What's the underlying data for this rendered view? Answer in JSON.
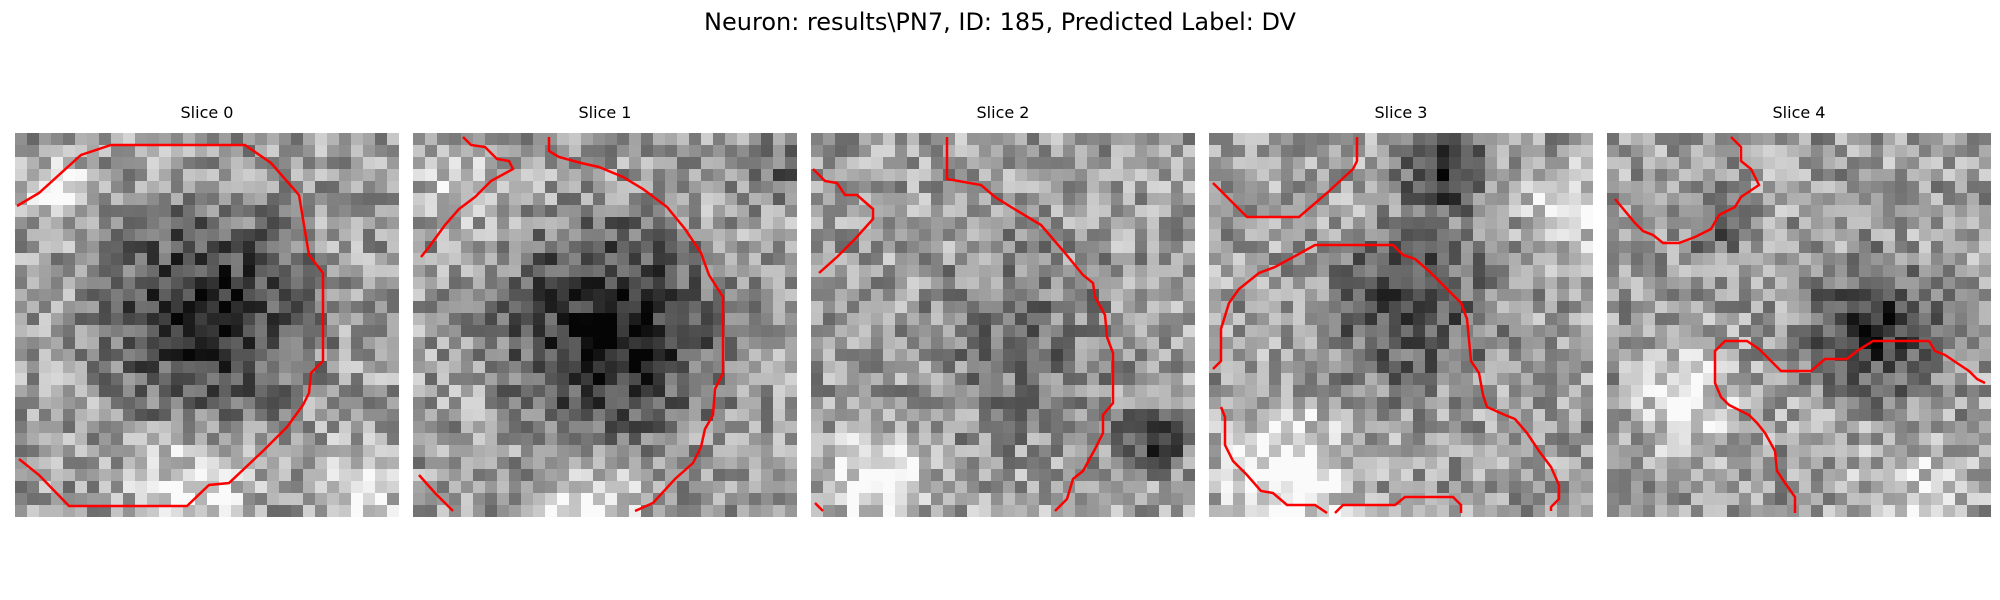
{
  "figure": {
    "title": "Neuron: results\\PN7, ID: 185, Predicted Label: DV"
  },
  "panels": [
    {
      "title": "Slice 0"
    },
    {
      "title": "Slice 1"
    },
    {
      "title": "Slice 2"
    },
    {
      "title": "Slice 3"
    },
    {
      "title": "Slice 4"
    }
  ],
  "colors": {
    "contour": "#ff0000",
    "background": "#ffffff"
  }
}
